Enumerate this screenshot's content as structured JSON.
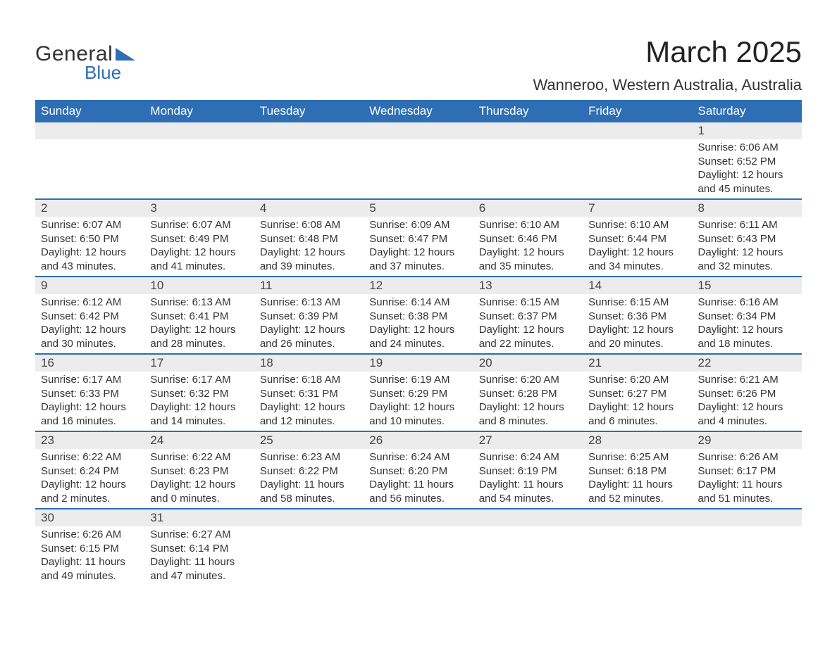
{
  "logo": {
    "text_general": "General",
    "text_blue": "Blue",
    "triangle_color": "#2d6eb4"
  },
  "title": "March 2025",
  "location": "Wanneroo, Western Australia, Australia",
  "theme": {
    "header_bg": "#2d6eb4",
    "header_fg": "#ffffff",
    "row_border": "#2d6eb4",
    "daynum_bg": "#ececec",
    "text_color": "#333333",
    "title_fontsize": 42,
    "location_fontsize": 22,
    "th_fontsize": 17,
    "daynum_fontsize": 17,
    "detail_fontsize": 15
  },
  "weekdays": [
    "Sunday",
    "Monday",
    "Tuesday",
    "Wednesday",
    "Thursday",
    "Friday",
    "Saturday"
  ],
  "weeks": [
    [
      null,
      null,
      null,
      null,
      null,
      null,
      {
        "day": "1",
        "sunrise": "Sunrise: 6:06 AM",
        "sunset": "Sunset: 6:52 PM",
        "daylight": "Daylight: 12 hours and 45 minutes."
      }
    ],
    [
      {
        "day": "2",
        "sunrise": "Sunrise: 6:07 AM",
        "sunset": "Sunset: 6:50 PM",
        "daylight": "Daylight: 12 hours and 43 minutes."
      },
      {
        "day": "3",
        "sunrise": "Sunrise: 6:07 AM",
        "sunset": "Sunset: 6:49 PM",
        "daylight": "Daylight: 12 hours and 41 minutes."
      },
      {
        "day": "4",
        "sunrise": "Sunrise: 6:08 AM",
        "sunset": "Sunset: 6:48 PM",
        "daylight": "Daylight: 12 hours and 39 minutes."
      },
      {
        "day": "5",
        "sunrise": "Sunrise: 6:09 AM",
        "sunset": "Sunset: 6:47 PM",
        "daylight": "Daylight: 12 hours and 37 minutes."
      },
      {
        "day": "6",
        "sunrise": "Sunrise: 6:10 AM",
        "sunset": "Sunset: 6:46 PM",
        "daylight": "Daylight: 12 hours and 35 minutes."
      },
      {
        "day": "7",
        "sunrise": "Sunrise: 6:10 AM",
        "sunset": "Sunset: 6:44 PM",
        "daylight": "Daylight: 12 hours and 34 minutes."
      },
      {
        "day": "8",
        "sunrise": "Sunrise: 6:11 AM",
        "sunset": "Sunset: 6:43 PM",
        "daylight": "Daylight: 12 hours and 32 minutes."
      }
    ],
    [
      {
        "day": "9",
        "sunrise": "Sunrise: 6:12 AM",
        "sunset": "Sunset: 6:42 PM",
        "daylight": "Daylight: 12 hours and 30 minutes."
      },
      {
        "day": "10",
        "sunrise": "Sunrise: 6:13 AM",
        "sunset": "Sunset: 6:41 PM",
        "daylight": "Daylight: 12 hours and 28 minutes."
      },
      {
        "day": "11",
        "sunrise": "Sunrise: 6:13 AM",
        "sunset": "Sunset: 6:39 PM",
        "daylight": "Daylight: 12 hours and 26 minutes."
      },
      {
        "day": "12",
        "sunrise": "Sunrise: 6:14 AM",
        "sunset": "Sunset: 6:38 PM",
        "daylight": "Daylight: 12 hours and 24 minutes."
      },
      {
        "day": "13",
        "sunrise": "Sunrise: 6:15 AM",
        "sunset": "Sunset: 6:37 PM",
        "daylight": "Daylight: 12 hours and 22 minutes."
      },
      {
        "day": "14",
        "sunrise": "Sunrise: 6:15 AM",
        "sunset": "Sunset: 6:36 PM",
        "daylight": "Daylight: 12 hours and 20 minutes."
      },
      {
        "day": "15",
        "sunrise": "Sunrise: 6:16 AM",
        "sunset": "Sunset: 6:34 PM",
        "daylight": "Daylight: 12 hours and 18 minutes."
      }
    ],
    [
      {
        "day": "16",
        "sunrise": "Sunrise: 6:17 AM",
        "sunset": "Sunset: 6:33 PM",
        "daylight": "Daylight: 12 hours and 16 minutes."
      },
      {
        "day": "17",
        "sunrise": "Sunrise: 6:17 AM",
        "sunset": "Sunset: 6:32 PM",
        "daylight": "Daylight: 12 hours and 14 minutes."
      },
      {
        "day": "18",
        "sunrise": "Sunrise: 6:18 AM",
        "sunset": "Sunset: 6:31 PM",
        "daylight": "Daylight: 12 hours and 12 minutes."
      },
      {
        "day": "19",
        "sunrise": "Sunrise: 6:19 AM",
        "sunset": "Sunset: 6:29 PM",
        "daylight": "Daylight: 12 hours and 10 minutes."
      },
      {
        "day": "20",
        "sunrise": "Sunrise: 6:20 AM",
        "sunset": "Sunset: 6:28 PM",
        "daylight": "Daylight: 12 hours and 8 minutes."
      },
      {
        "day": "21",
        "sunrise": "Sunrise: 6:20 AM",
        "sunset": "Sunset: 6:27 PM",
        "daylight": "Daylight: 12 hours and 6 minutes."
      },
      {
        "day": "22",
        "sunrise": "Sunrise: 6:21 AM",
        "sunset": "Sunset: 6:26 PM",
        "daylight": "Daylight: 12 hours and 4 minutes."
      }
    ],
    [
      {
        "day": "23",
        "sunrise": "Sunrise: 6:22 AM",
        "sunset": "Sunset: 6:24 PM",
        "daylight": "Daylight: 12 hours and 2 minutes."
      },
      {
        "day": "24",
        "sunrise": "Sunrise: 6:22 AM",
        "sunset": "Sunset: 6:23 PM",
        "daylight": "Daylight: 12 hours and 0 minutes."
      },
      {
        "day": "25",
        "sunrise": "Sunrise: 6:23 AM",
        "sunset": "Sunset: 6:22 PM",
        "daylight": "Daylight: 11 hours and 58 minutes."
      },
      {
        "day": "26",
        "sunrise": "Sunrise: 6:24 AM",
        "sunset": "Sunset: 6:20 PM",
        "daylight": "Daylight: 11 hours and 56 minutes."
      },
      {
        "day": "27",
        "sunrise": "Sunrise: 6:24 AM",
        "sunset": "Sunset: 6:19 PM",
        "daylight": "Daylight: 11 hours and 54 minutes."
      },
      {
        "day": "28",
        "sunrise": "Sunrise: 6:25 AM",
        "sunset": "Sunset: 6:18 PM",
        "daylight": "Daylight: 11 hours and 52 minutes."
      },
      {
        "day": "29",
        "sunrise": "Sunrise: 6:26 AM",
        "sunset": "Sunset: 6:17 PM",
        "daylight": "Daylight: 11 hours and 51 minutes."
      }
    ],
    [
      {
        "day": "30",
        "sunrise": "Sunrise: 6:26 AM",
        "sunset": "Sunset: 6:15 PM",
        "daylight": "Daylight: 11 hours and 49 minutes."
      },
      {
        "day": "31",
        "sunrise": "Sunrise: 6:27 AM",
        "sunset": "Sunset: 6:14 PM",
        "daylight": "Daylight: 11 hours and 47 minutes."
      },
      null,
      null,
      null,
      null,
      null
    ]
  ]
}
